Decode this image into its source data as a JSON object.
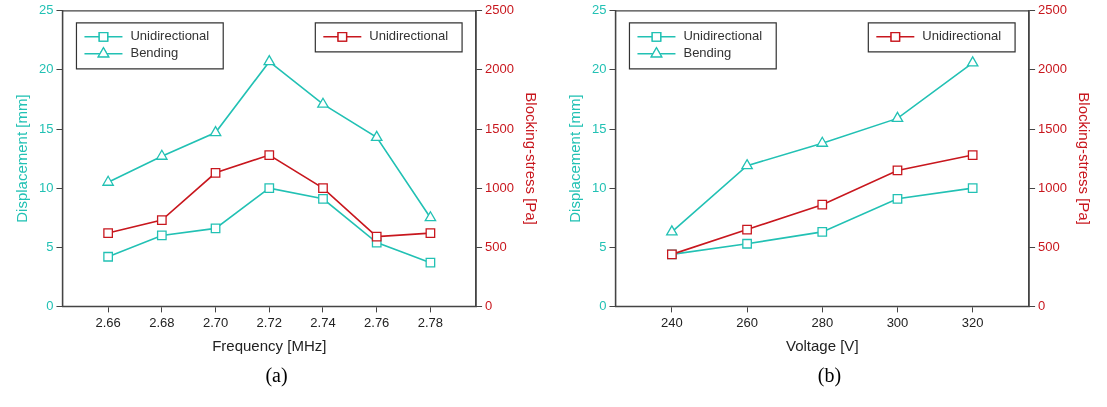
{
  "chart_data": [
    {
      "type": "line",
      "xlabel": "Frequency [MHz]",
      "ylabel": "Displacement [mm]",
      "y2label": "Blocking-stress [Pa]",
      "x": [
        2.66,
        2.68,
        2.7,
        2.72,
        2.74,
        2.76,
        2.78
      ],
      "xlim": [
        2.643,
        2.797
      ],
      "xticks": [
        {
          "value": 2.66,
          "label": "2.66"
        },
        {
          "value": 2.68,
          "label": "2.68"
        },
        {
          "value": 2.7,
          "label": "2.70"
        },
        {
          "value": 2.72,
          "label": "2.72"
        },
        {
          "value": 2.74,
          "label": "2.74"
        },
        {
          "value": 2.76,
          "label": "2.76"
        },
        {
          "value": 2.78,
          "label": "2.78"
        }
      ],
      "ylim": [
        0,
        25
      ],
      "yticks": [
        0,
        5,
        10,
        15,
        20,
        25
      ],
      "y2lim": [
        0,
        2500
      ],
      "y2ticks": [
        0,
        500,
        1000,
        1500,
        2000,
        2500
      ],
      "grid": false,
      "legend": "top",
      "series": [
        {
          "name": "Unidirectional",
          "color": "#22c1b4",
          "marker": "square",
          "values": [
            4.2,
            6.0,
            6.6,
            10.0,
            9.1,
            5.4,
            3.7
          ]
        },
        {
          "name": "Bending",
          "color": "#22c1b4",
          "marker": "triangle",
          "values": [
            10.5,
            12.7,
            14.7,
            20.7,
            17.1,
            14.3,
            7.5
          ]
        },
        {
          "name": "Unidirectional",
          "color": "#c8171e",
          "marker": "square",
          "axis": "y2",
          "values": [
            620,
            730,
            1130,
            1280,
            1000,
            590,
            620
          ]
        }
      ],
      "annotations": [
        "(a)"
      ]
    },
    {
      "type": "line",
      "xlabel": "Voltage [V]",
      "ylabel": "Displacement [mm]",
      "y2label": "Blocking-stress [Pa]",
      "x": [
        240,
        260,
        280,
        300,
        320
      ],
      "xlim": [
        225,
        335
      ],
      "xticks": [
        240,
        260,
        280,
        300,
        320
      ],
      "ylim": [
        0,
        25
      ],
      "yticks": [
        0,
        5,
        10,
        15,
        20,
        25
      ],
      "y2lim": [
        0,
        2500
      ],
      "y2ticks": [
        0,
        500,
        1000,
        1500,
        2000,
        2500
      ],
      "grid": false,
      "legend": "top",
      "series": [
        {
          "name": "Unidirectional",
          "color": "#22c1b4",
          "marker": "square",
          "values": [
            4.4,
            5.3,
            6.3,
            9.1,
            10.0
          ]
        },
        {
          "name": "Bending",
          "color": "#22c1b4",
          "marker": "triangle",
          "values": [
            6.3,
            11.9,
            13.8,
            15.9,
            20.6
          ]
        },
        {
          "name": "Unidirectional",
          "color": "#c8171e",
          "marker": "square",
          "axis": "y2",
          "values": [
            440,
            650,
            860,
            1150,
            1280
          ]
        }
      ],
      "annotations": [
        "(b)"
      ]
    }
  ]
}
